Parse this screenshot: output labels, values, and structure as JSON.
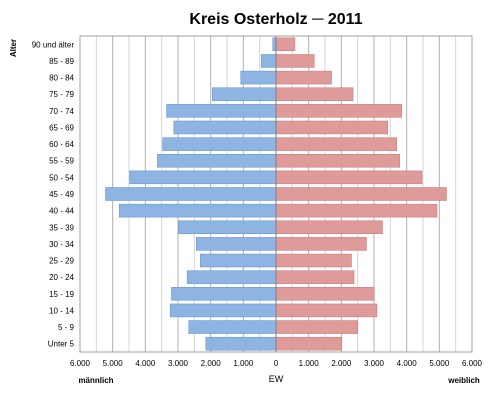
{
  "chart_data": {
    "type": "bar",
    "orientation": "horizontal",
    "title": "Kreis Osterholz ─ 2011",
    "ylabel": "Alter",
    "xlabel": "EW",
    "left_side_label": "männlich",
    "right_side_label": "weiblich",
    "xlim": [
      -6000,
      6000
    ],
    "x_ticks": [
      -6000,
      -5000,
      -4000,
      -3000,
      -2000,
      -1000,
      0,
      1000,
      2000,
      3000,
      4000,
      5000,
      6000
    ],
    "x_tick_labels": [
      "6.000",
      "5.000",
      "4.000",
      "3.000",
      "2.000",
      "1.000",
      "0",
      "1.000",
      "2.000",
      "3.000",
      "4.000",
      "5.000",
      "6.000"
    ],
    "grid": true,
    "categories": [
      "90 und älter",
      "85 - 89",
      "80 - 84",
      "75 - 79",
      "70 - 74",
      "65 - 69",
      "60 - 64",
      "55 - 59",
      "50 - 54",
      "45 - 49",
      "40 - 44",
      "35 - 39",
      "30 - 34",
      "25 - 29",
      "20 - 24",
      "15 - 19",
      "10 - 14",
      "5 - 9",
      "Unter 5"
    ],
    "series": [
      {
        "name": "männlich",
        "color": "#8eb4e3",
        "values": [
          100,
          450,
          1080,
          1950,
          3350,
          3130,
          3470,
          3630,
          4480,
          5220,
          4800,
          2980,
          2440,
          2320,
          2720,
          3200,
          3240,
          2670,
          2150
        ]
      },
      {
        "name": "weiblich",
        "color": "#df9a9a",
        "values": [
          580,
          1170,
          1700,
          2360,
          3850,
          3420,
          3700,
          3790,
          4470,
          5220,
          4930,
          3260,
          2770,
          2310,
          2390,
          3010,
          3090,
          2500,
          2010
        ]
      }
    ]
  }
}
